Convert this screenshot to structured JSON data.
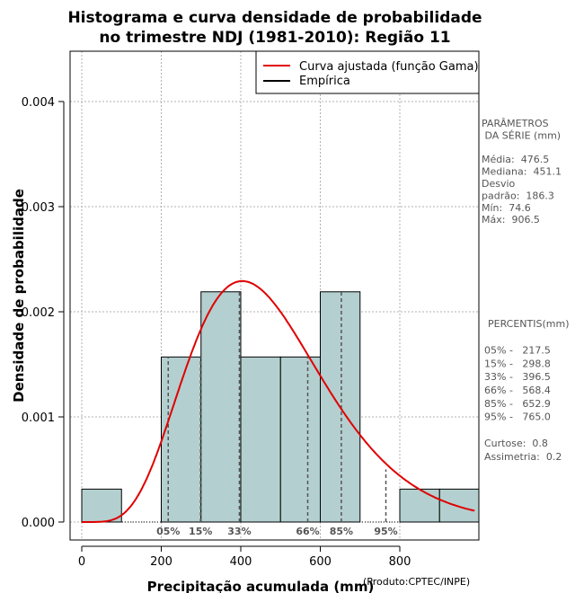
{
  "chart_data": {
    "type": "bar",
    "title_line1": "Histograma e curva densidade de probabilidade",
    "title_line2": "no trimestre NDJ (1981-2010): Região 11",
    "xlabel": "Precipitação acumulada (mm)",
    "ylabel": "Densidade de probabilidade",
    "credit": "(Produto:CPTEC/INPE)",
    "xlim": [
      0,
      990
    ],
    "ylim": [
      0,
      0.0045
    ],
    "x_ticks": [
      0,
      200,
      400,
      600,
      800
    ],
    "x_tick_labels": [
      "0",
      "200",
      "400",
      "600",
      "800"
    ],
    "y_ticks": [
      0,
      0.001,
      0.002,
      0.003,
      0.004
    ],
    "y_tick_labels": [
      "0.000",
      "0.001",
      "0.002",
      "0.003",
      "0.004"
    ],
    "bin_edges": [
      0,
      100,
      200,
      300,
      400,
      500,
      600,
      700,
      800,
      900,
      1000
    ],
    "densities": [
      0.000313,
      0,
      0.00157,
      0.00219,
      0.00157,
      0.00157,
      0.00219,
      0,
      0.000313,
      0.000313
    ],
    "bar_color": "#b4cfcf",
    "curve_color": "#e00000",
    "gamma_fit": {
      "mean": 476.5,
      "sd": 186.3
    },
    "percentiles": [
      {
        "label": "05%",
        "value": 217.5
      },
      {
        "label": "15%",
        "value": 298.8
      },
      {
        "label": "33%",
        "value": 396.5
      },
      {
        "label": "66%",
        "value": 568.4
      },
      {
        "label": "85%",
        "value": 652.9
      },
      {
        "label": "95%",
        "value": 765.0
      }
    ],
    "legend": [
      {
        "label": "Curva ajustada (função Gama)",
        "color": "#e00000"
      },
      {
        "label": "Empírica",
        "color": "#000000"
      }
    ]
  },
  "side_panel": {
    "params_lines": [
      "PARÂMETROS",
      " DA SÉRIE (mm)",
      "",
      "Média:  476.5",
      "Mediana:  451.1",
      "Desvio",
      "padrão:  186.3",
      "Mín:  74.6",
      "Máx:  906.5"
    ],
    "percentis_lines": [
      "PERCENTIS(mm)",
      "",
      "05% -   217.5",
      "15% -   298.8",
      "33% -   396.5",
      "66% -   568.4",
      "85% -   652.9",
      "95% -   765.0",
      "",
      "Curtose:  0.8",
      "Assimetria:  0.2"
    ]
  }
}
